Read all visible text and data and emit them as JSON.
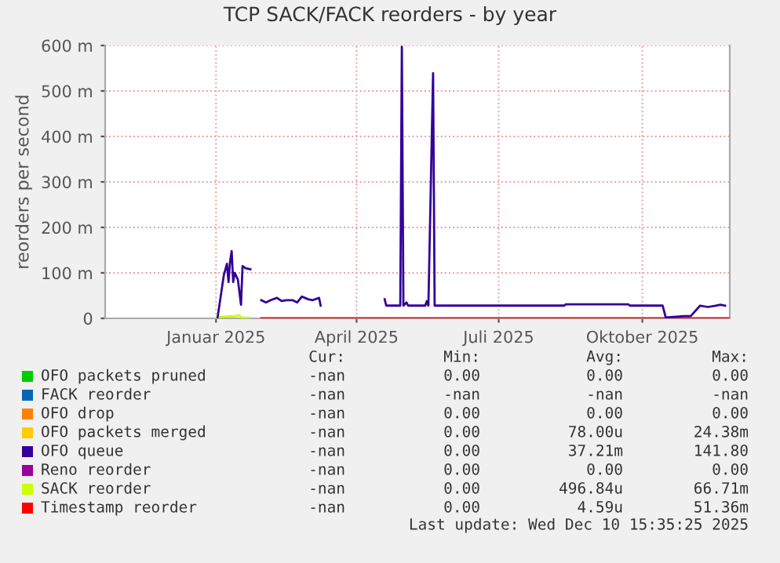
{
  "chart_data": {
    "type": "line",
    "title": "TCP SACK/FACK reorders - by year",
    "ylabel": "reorders per second",
    "xlim": [
      "2024-11-05",
      "2025-12-10"
    ],
    "xticks": [
      {
        "value": "2025-01-15",
        "label": "Januar 2025"
      },
      {
        "value": "2025-04-15",
        "label": "April 2025"
      },
      {
        "value": "2025-07-15",
        "label": "Juli 2025"
      },
      {
        "value": "2025-10-15",
        "label": "Oktober 2025"
      }
    ],
    "ylim": [
      0,
      600
    ],
    "yticks": [
      0,
      {
        "value": 100,
        "label": "100 m"
      },
      {
        "value": 200,
        "label": "200 m"
      },
      {
        "value": 300,
        "label": "300 m"
      },
      {
        "value": 400,
        "label": "400 m"
      },
      {
        "value": 500,
        "label": "500 m"
      },
      {
        "value": 600,
        "label": "600 m"
      }
    ],
    "grid": true,
    "legend": "bottom",
    "series": [
      {
        "name": "OFO packets pruned",
        "color": "#00cc00"
      },
      {
        "name": "FACK reorder",
        "color": "#0066b3"
      },
      {
        "name": "OFO drop",
        "color": "#ff8000"
      },
      {
        "name": "OFO packets merged",
        "color": "#ffcc00"
      },
      {
        "name": "OFO queue",
        "color": "#330099",
        "x": [
          "2025-01-16",
          "2025-01-20",
          "2025-01-22",
          "2025-01-23",
          "2025-01-24",
          "2025-01-25",
          "2025-01-26",
          "2025-01-27",
          "2025-01-29",
          "2025-01-31",
          "2025-02-01",
          "2025-02-03",
          "2025-02-06",
          "2025-02-09",
          "2025-02-13",
          "2025-02-16",
          "2025-02-19",
          "2025-02-23",
          "2025-02-26",
          "2025-03-01",
          "2025-03-05",
          "2025-03-08",
          "2025-03-11",
          "2025-03-15",
          "2025-03-18",
          "2025-03-22",
          "2025-03-23",
          "2025-04-20",
          "2025-05-03",
          "2025-05-04",
          "2025-05-13",
          "2025-05-14",
          "2025-05-15",
          "2025-05-17",
          "2025-05-18",
          "2025-05-29",
          "2025-05-30",
          "2025-05-31",
          "2025-06-03",
          "2025-06-04",
          "2025-08-26",
          "2025-08-27",
          "2025-10-06",
          "2025-10-07",
          "2025-10-28",
          "2025-10-30",
          "2025-11-11",
          "2025-11-15",
          "2025-11-21",
          "2025-11-26",
          "2025-12-01",
          "2025-12-04",
          "2025-12-07"
        ],
        "values": [
          2,
          95,
          120,
          80,
          125,
          148,
          80,
          100,
          85,
          30,
          115,
          110,
          108,
          null,
          40,
          35,
          40,
          45,
          38,
          40,
          40,
          35,
          48,
          42,
          40,
          45,
          28,
          null,
          42,
          28,
          28,
          597,
          28,
          35,
          28,
          28,
          38,
          28,
          539,
          28,
          28,
          31,
          31,
          28,
          28,
          2,
          5,
          5,
          28,
          25,
          28,
          30,
          28
        ]
      },
      {
        "name": "Reno reorder",
        "color": "#990099"
      },
      {
        "name": "SACK reorder",
        "color": "#ccff00",
        "x": [
          "2025-01-15",
          "2025-01-17",
          "2025-01-24",
          "2025-01-26",
          "2025-01-30",
          "2025-01-31",
          "2025-02-05"
        ],
        "values": [
          0,
          3,
          5,
          4,
          7,
          2,
          1
        ]
      },
      {
        "name": "Timestamp reorder",
        "color": "#ff0000",
        "x": [
          "2025-02-13",
          "2025-12-09"
        ],
        "values": [
          0,
          0
        ]
      }
    ],
    "annotations": [
      "Cur:",
      "Min:",
      "Avg:",
      "Max:",
      "-nan",
      "0.00",
      "0.00",
      "0.00",
      "-nan",
      "-nan",
      "-nan",
      "-nan",
      "-nan",
      "0.00",
      "0.00",
      "0.00",
      "-nan",
      "0.00",
      "78.00u",
      "24.38m",
      "-nan",
      "0.00",
      "37.21m",
      "141.80",
      "-nan",
      "0.00",
      "0.00",
      "0.00",
      "-nan",
      "0.00",
      "496.84u",
      "66.71m",
      "-nan",
      "0.00",
      "4.59u",
      "51.36m",
      "Last update: Wed Dec 10 15:35:25 2025"
    ]
  }
}
